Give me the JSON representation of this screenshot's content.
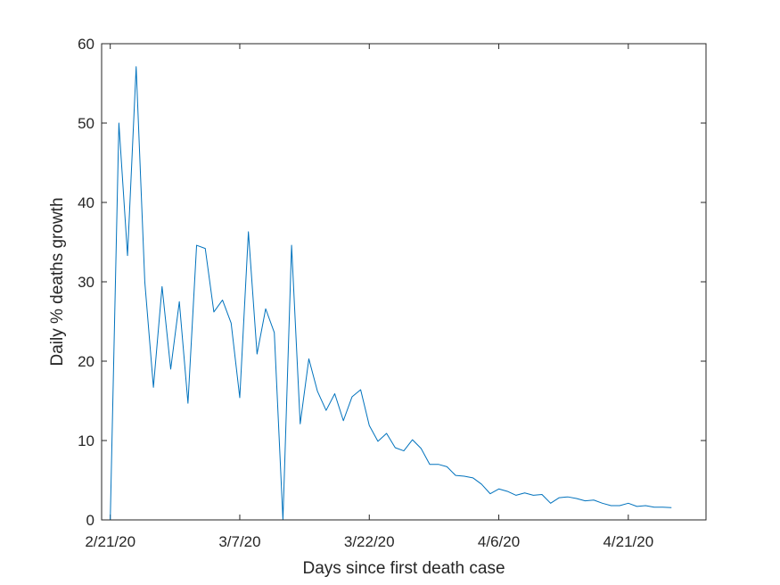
{
  "chart_data": {
    "type": "line",
    "title": "",
    "xlabel": "Days since first death case",
    "ylabel": "Daily % deaths growth",
    "xlim": [
      "2/20/20",
      "4/30/20"
    ],
    "ylim": [
      0,
      60
    ],
    "grid": false,
    "x_tick_labels": [
      "2/21/20",
      "3/7/20",
      "3/22/20",
      "4/6/20",
      "4/21/20"
    ],
    "y_tick_labels": [
      "0",
      "10",
      "20",
      "30",
      "40",
      "50",
      "60"
    ],
    "line_color": "#0072BD",
    "series": [
      {
        "x": [
          "2/21/20",
          "2/22/20",
          "2/23/20",
          "2/24/20",
          "2/25/20",
          "2/26/20",
          "2/27/20",
          "2/28/20",
          "2/29/20",
          "3/1/20",
          "3/2/20",
          "3/3/20",
          "3/4/20",
          "3/5/20",
          "3/6/20",
          "3/7/20",
          "3/8/20",
          "3/9/20",
          "3/10/20",
          "3/11/20",
          "3/12/20",
          "3/13/20",
          "3/14/20",
          "3/15/20",
          "3/16/20",
          "3/17/20",
          "3/18/20",
          "3/19/20",
          "3/20/20",
          "3/21/20",
          "3/22/20",
          "3/23/20",
          "3/24/20",
          "3/25/20",
          "3/26/20",
          "3/27/20",
          "3/28/20",
          "3/29/20",
          "3/30/20",
          "3/31/20",
          "4/1/20",
          "4/2/20",
          "4/3/20",
          "4/4/20",
          "4/5/20",
          "4/6/20",
          "4/7/20",
          "4/8/20",
          "4/9/20",
          "4/10/20",
          "4/11/20",
          "4/12/20",
          "4/13/20",
          "4/14/20",
          "4/15/20",
          "4/16/20",
          "4/17/20",
          "4/18/20",
          "4/19/20",
          "4/20/20",
          "4/21/20",
          "4/22/20",
          "4/23/20",
          "4/24/20",
          "4/25/20",
          "4/26/20"
        ],
        "values": [
          0,
          50,
          33.3,
          57.1,
          30,
          16.7,
          29.4,
          19,
          27.5,
          14.7,
          34.6,
          34.2,
          26.2,
          27.7,
          24.8,
          15.4,
          36.3,
          20.9,
          26.6,
          23.6,
          0,
          34.6,
          12.1,
          20.3,
          16.2,
          13.8,
          15.9,
          12.5,
          15.5,
          16.4,
          11.9,
          9.9,
          10.9,
          9.1,
          8.7,
          10.1,
          9,
          7,
          7,
          6.7,
          5.6,
          5.5,
          5.3,
          4.5,
          3.3,
          3.9,
          3.6,
          3.1,
          3.4,
          3.1,
          3.2,
          2.1,
          2.8,
          2.9,
          2.7,
          2.4,
          2.5,
          2.1,
          1.8,
          1.8,
          2.1,
          1.7,
          1.8,
          1.6,
          1.6,
          1.55
        ]
      }
    ]
  }
}
